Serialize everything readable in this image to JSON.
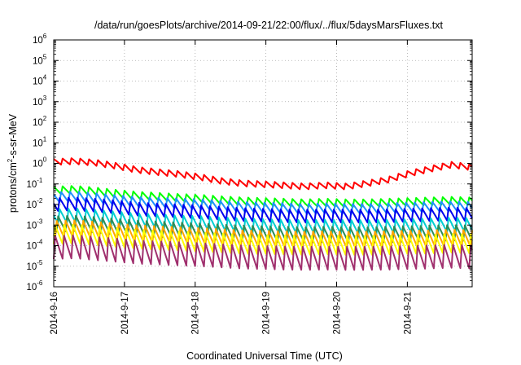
{
  "chart_data": {
    "type": "line",
    "title": "/data/run/goesPlots/archive/2014-09-21/22:00/flux/../flux/5daysMarsFluxes.txt",
    "xlabel": "Coordinated Universal Time (UTC)",
    "ylabel": "protons/cm2-s-sr-MeV",
    "ylabel_parts": {
      "before": "protons/cm",
      "sup": "2",
      "after": "-s-sr-MeV"
    },
    "yscale": "log",
    "ylim": [
      1e-06,
      1000000.0
    ],
    "y_ticks": [
      {
        "value": 1e-06,
        "base": "10",
        "exp": "-6"
      },
      {
        "value": 1e-05,
        "base": "10",
        "exp": "-5"
      },
      {
        "value": 0.0001,
        "base": "10",
        "exp": "-4"
      },
      {
        "value": 0.001,
        "base": "10",
        "exp": "-3"
      },
      {
        "value": 0.01,
        "base": "10",
        "exp": "-2"
      },
      {
        "value": 0.1,
        "base": "10",
        "exp": "-1"
      },
      {
        "value": 1,
        "base": "10",
        "exp": "0"
      },
      {
        "value": 10.0,
        "base": "10",
        "exp": "1"
      },
      {
        "value": 100.0,
        "base": "10",
        "exp": "2"
      },
      {
        "value": 1000.0,
        "base": "10",
        "exp": "3"
      },
      {
        "value": 10000.0,
        "base": "10",
        "exp": "4"
      },
      {
        "value": 100000.0,
        "base": "10",
        "exp": "5"
      },
      {
        "value": 1000000.0,
        "base": "10",
        "exp": "6"
      }
    ],
    "xlim": [
      "2014-09-16",
      "2014-09-21 22:00"
    ],
    "x_ticks": [
      "2014-9-16",
      "2014-9-17",
      "2014-9-18",
      "2014-9-19",
      "2014-9-20",
      "2014-9-21"
    ],
    "grid": true,
    "series": [
      {
        "color": "#ff0000",
        "level": [
          1.1,
          1.2,
          1.0,
          0.7,
          0.45,
          0.35,
          0.28,
          0.2,
          0.13,
          0.1,
          0.09,
          0.08,
          0.07,
          0.08,
          0.07,
          0.1,
          0.15,
          0.3,
          0.5,
          0.8,
          0.6
        ],
        "sawtooth": 0.35
      },
      {
        "color": "#00ff00",
        "level": [
          0.05,
          0.055,
          0.045,
          0.035,
          0.028,
          0.025,
          0.022,
          0.02,
          0.017,
          0.015,
          0.014,
          0.013,
          0.012,
          0.013,
          0.012,
          0.012,
          0.013,
          0.014,
          0.015,
          0.016,
          0.015
        ],
        "sawtooth": 0.45
      },
      {
        "color": "#1e90ff",
        "level": [
          0.022,
          0.024,
          0.02,
          0.016,
          0.013,
          0.012,
          0.011,
          0.01,
          0.0085,
          0.0075,
          0.007,
          0.0065,
          0.006,
          0.0065,
          0.006,
          0.006,
          0.0065,
          0.007,
          0.0075,
          0.008,
          0.0075
        ],
        "sawtooth": 0.6
      },
      {
        "color": "#0000ee",
        "level": [
          0.009,
          0.01,
          0.0085,
          0.007,
          0.0055,
          0.005,
          0.0045,
          0.004,
          0.0035,
          0.003,
          0.0028,
          0.0026,
          0.0025,
          0.0026,
          0.0025,
          0.0025,
          0.0026,
          0.0028,
          0.003,
          0.0032,
          0.003
        ],
        "sawtooth": 0.75
      },
      {
        "color": "#00ced1",
        "level": [
          0.003,
          0.0033,
          0.0028,
          0.0023,
          0.0019,
          0.0017,
          0.0015,
          0.0014,
          0.0012,
          0.0011,
          0.001,
          0.00095,
          0.0009,
          0.00095,
          0.0009,
          0.0009,
          0.00095,
          0.001,
          0.0011,
          0.0012,
          0.0011
        ],
        "sawtooth": 0.85
      },
      {
        "color": "#2e8b57",
        "level": [
          0.0012,
          0.0013,
          0.0011,
          0.0009,
          0.00075,
          0.00068,
          0.0006,
          0.00055,
          0.00048,
          0.00043,
          0.0004,
          0.00038,
          0.00036,
          0.00038,
          0.00036,
          0.00036,
          0.00038,
          0.0004,
          0.00043,
          0.00046,
          0.00043
        ],
        "sawtooth": 0.9
      },
      {
        "color": "#ffa500",
        "level": [
          0.0006,
          0.00065,
          0.00055,
          0.00045,
          0.00037,
          0.00033,
          0.0003,
          0.00027,
          0.00024,
          0.00021,
          0.0002,
          0.00019,
          0.00018,
          0.00019,
          0.00018,
          0.00018,
          0.00019,
          0.0002,
          0.00021,
          0.00023,
          0.00021
        ],
        "sawtooth": 1.0
      },
      {
        "color": "#ffff00",
        "level": [
          0.0003,
          0.00032,
          0.00027,
          0.00022,
          0.00018,
          0.00016,
          0.00015,
          0.00013,
          0.00012,
          0.0001,
          0.0001,
          9.5e-05,
          9e-05,
          9.5e-05,
          9e-05,
          9e-05,
          9.5e-05,
          0.0001,
          0.000105,
          0.000115,
          0.000105
        ],
        "sawtooth": 1.1
      },
      {
        "color": "#a0306e",
        "level": [
          0.0001,
          0.00011,
          9e-05,
          7.5e-05,
          6e-05,
          5.5e-05,
          5e-05,
          4.5e-05,
          4e-05,
          3.5e-05,
          3.3e-05,
          3.1e-05,
          3e-05,
          3.1e-05,
          3e-05,
          3e-05,
          3.1e-05,
          3.3e-05,
          3.5e-05,
          3.8e-05,
          3.5e-05
        ],
        "sawtooth": 1.35
      }
    ]
  }
}
